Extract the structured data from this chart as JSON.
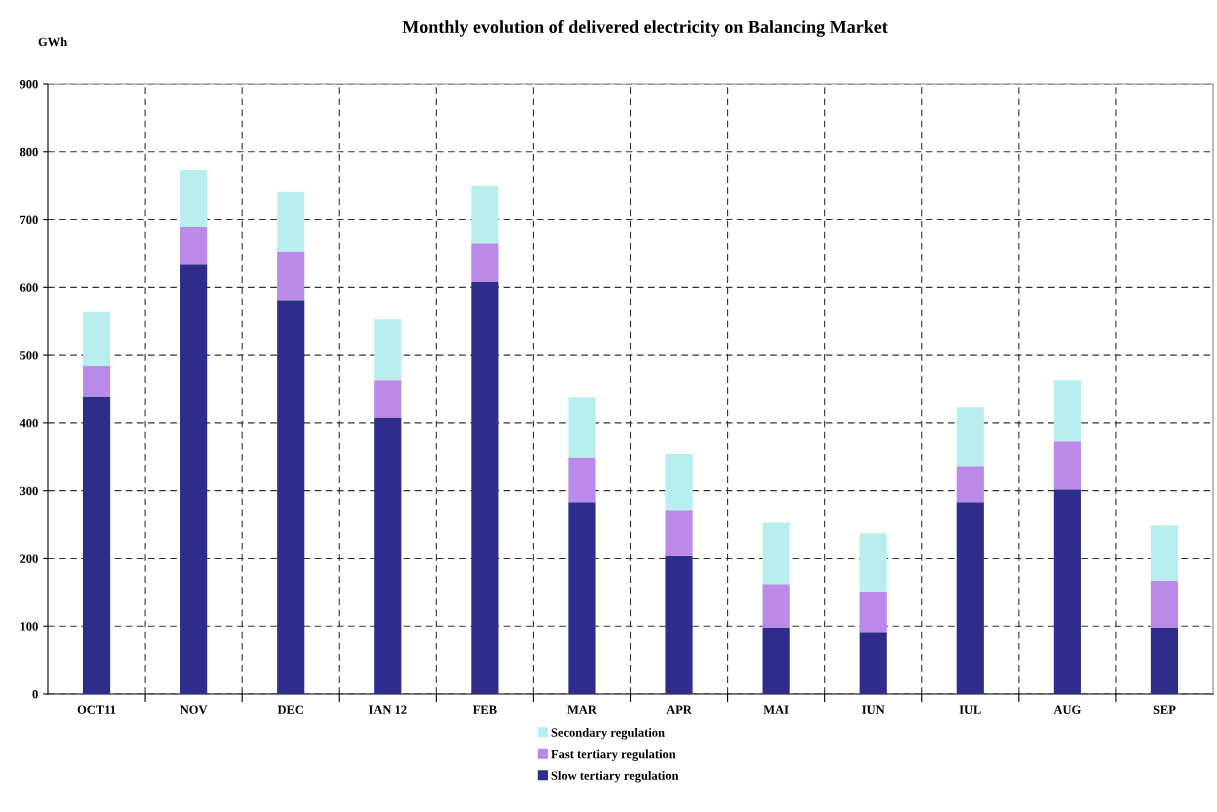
{
  "chart_data": {
    "type": "bar",
    "stacked": true,
    "title": "Monthly evolution of delivered electricity on Balancing Market",
    "ylabel": "GWh",
    "categories": [
      "OCT11",
      "NOV",
      "DEC",
      "IAN 12",
      "FEB",
      "MAR",
      "APR",
      "MAI",
      "IUN",
      "IUL",
      "AUG",
      "SEP"
    ],
    "series": [
      {
        "name": "Slow tertiary regulation",
        "color": "#2e2e8a",
        "values": [
          439,
          634,
          581,
          408,
          608,
          283,
          204,
          98,
          91,
          283,
          302,
          98
        ]
      },
      {
        "name": "Fast tertiary regulation",
        "color": "#b98ae8",
        "values": [
          45,
          55,
          72,
          55,
          57,
          66,
          67,
          64,
          60,
          53,
          71,
          69
        ]
      },
      {
        "name": "Secondary regulation",
        "color": "#b8eeee",
        "values": [
          80,
          84,
          88,
          90,
          85,
          89,
          83,
          91,
          86,
          87,
          90,
          82
        ]
      }
    ],
    "ylim": [
      0,
      900
    ],
    "yticks": [
      0,
      100,
      200,
      300,
      400,
      500,
      600,
      700,
      800,
      900
    ],
    "grid": true,
    "legend": "bottom"
  }
}
